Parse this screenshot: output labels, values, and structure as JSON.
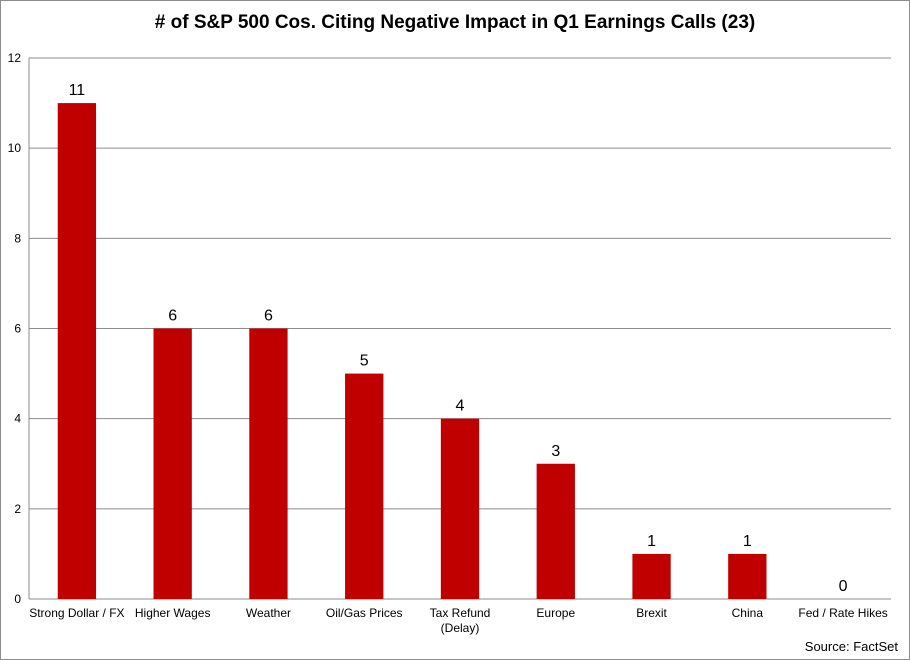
{
  "chart_data": {
    "type": "bar",
    "title": "# of S&P 500 Cos. Citing Negative Impact in Q1 Earnings Calls (23)",
    "categories": [
      "Strong Dollar / FX",
      "Higher Wages",
      "Weather",
      "Oil/Gas Prices",
      "Tax Refund (Delay)",
      "Europe",
      "Brexit",
      "China",
      "Fed / Rate Hikes"
    ],
    "values": [
      11,
      6,
      6,
      5,
      4,
      3,
      1,
      1,
      0
    ],
    "xlabel": "",
    "ylabel": "",
    "ylim": [
      0,
      12
    ],
    "yticks": [
      0,
      2,
      4,
      6,
      8,
      10,
      12
    ],
    "grid": true,
    "bar_color": "#c00000",
    "data_labels": true
  },
  "source": "Source: FactSet"
}
